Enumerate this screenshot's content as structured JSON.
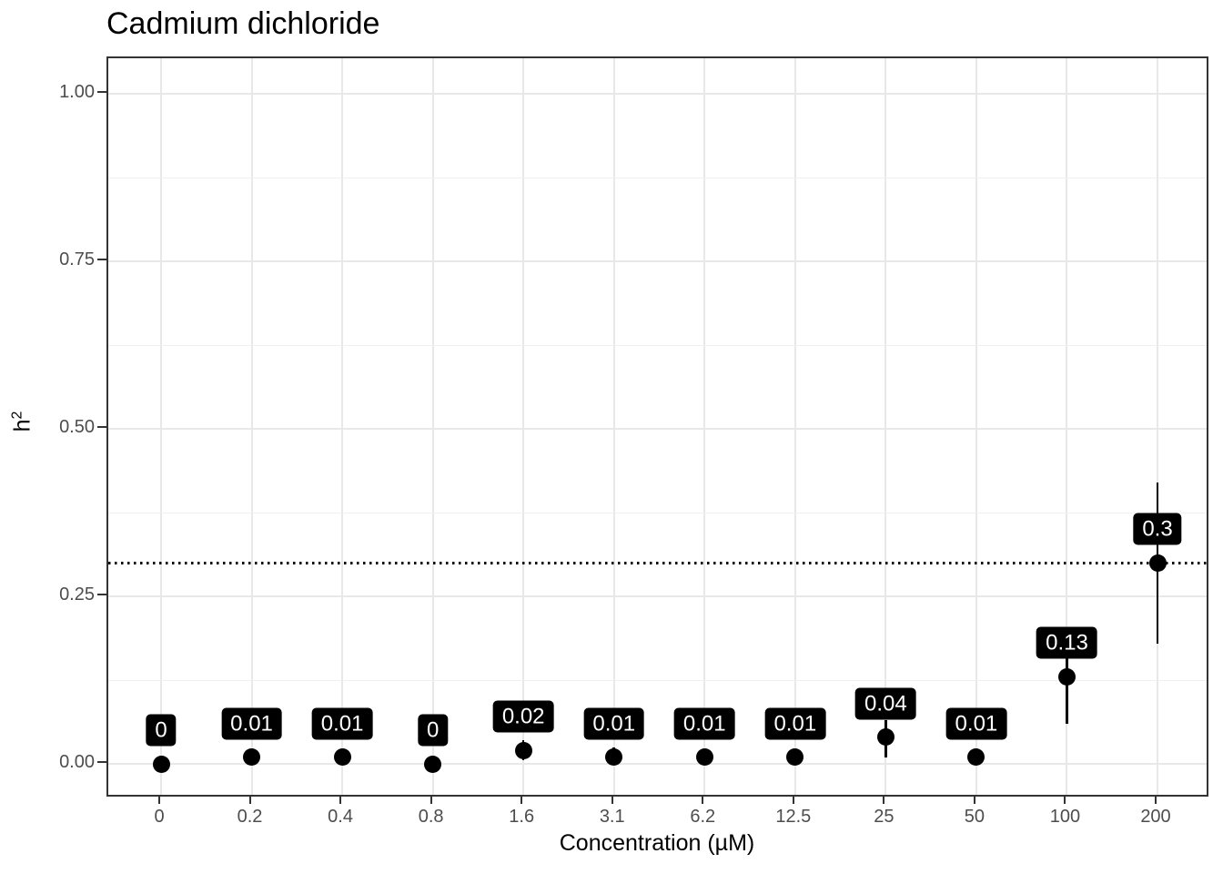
{
  "chart_data": {
    "type": "scatter",
    "title": "Cadmium dichloride",
    "xlabel": "Concentration (µM)",
    "ylabel": "h²",
    "ylabel_base": "h",
    "ylabel_exponent": "2",
    "categories": [
      "0",
      "0.2",
      "0.4",
      "0.8",
      "1.6",
      "3.1",
      "6.2",
      "12.5",
      "25",
      "50",
      "100",
      "200"
    ],
    "values": [
      0,
      0.01,
      0.01,
      0,
      0.02,
      0.01,
      0.01,
      0.01,
      0.04,
      0.01,
      0.13,
      0.3
    ],
    "point_labels": [
      "0",
      "0.01",
      "0.01",
      "0",
      "0.02",
      "0.01",
      "0.01",
      "0.01",
      "0.04",
      "0.01",
      "0.13",
      "0.3"
    ],
    "ci_low": [
      0,
      0.005,
      0.005,
      0,
      0.005,
      0.005,
      0.005,
      0.005,
      0.01,
      0.005,
      0.06,
      0.18
    ],
    "ci_high": [
      0.005,
      0.015,
      0.015,
      0.005,
      0.035,
      0.025,
      0.015,
      0.015,
      0.065,
      0.02,
      0.2,
      0.42
    ],
    "reference_line_y": 0.3,
    "reference_line_style": "dotted",
    "ytick_labels": [
      "0.00",
      "0.25",
      "0.50",
      "0.75",
      "1.00"
    ],
    "ytick_values": [
      0,
      0.25,
      0.5,
      0.75,
      1
    ],
    "y_minor_tick_values": [
      0.125,
      0.375,
      0.625,
      0.875
    ],
    "ylim": [
      -0.052,
      1.053
    ],
    "grid": true,
    "legend_position": "none"
  },
  "colors": {
    "point": "#000000",
    "error_bar": "#000000",
    "label_bg": "#000000",
    "label_text": "#ffffff",
    "grid_major": "#e8e8e8",
    "grid_minor": "#f0f0f0",
    "panel_border": "#333333",
    "tick": "#333333",
    "tick_label": "#4d4d4d",
    "title": "#000000",
    "reference_line": "#000000",
    "background": "#ffffff"
  }
}
